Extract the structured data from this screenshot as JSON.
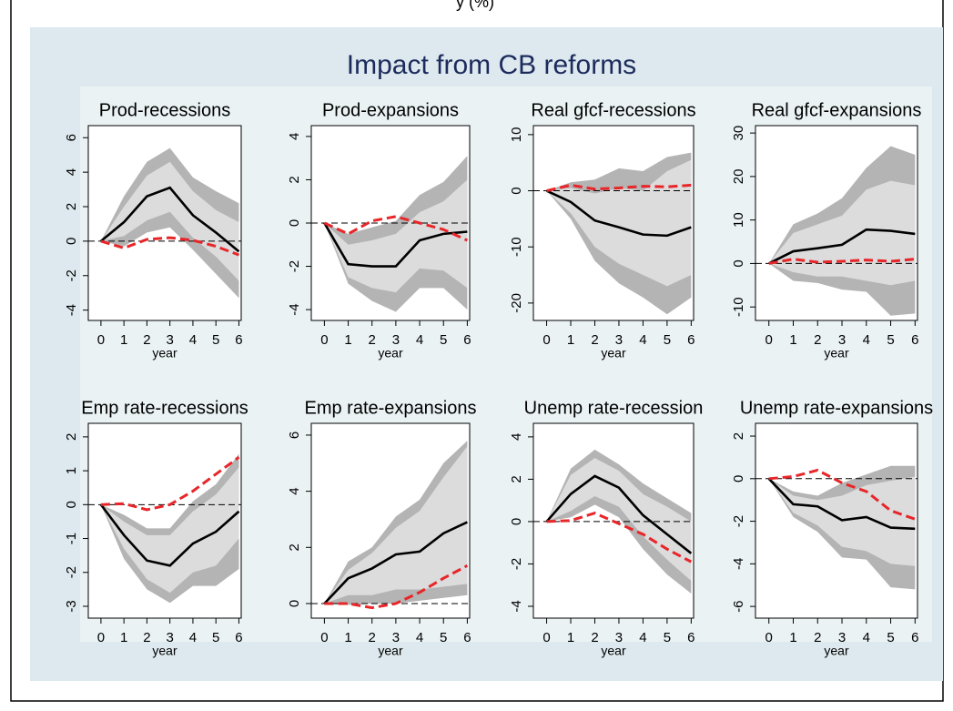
{
  "top_caption": "y (%)",
  "title": "Impact from CB reforms",
  "chart_data": [
    {
      "type": "line",
      "title": "Prod-recessions",
      "xlabel": "year",
      "x": [
        0,
        1,
        2,
        3,
        4,
        5,
        6
      ],
      "xlim": [
        -0.55,
        6.1
      ],
      "xticks": [
        0,
        1,
        2,
        3,
        4,
        5,
        6
      ],
      "ylim": [
        -4.6,
        6.7
      ],
      "yticks": [
        -4,
        -2,
        0,
        2,
        4,
        6
      ],
      "hline": 0,
      "bands": [
        {
          "color": "#b4b4b4",
          "upper": [
            0,
            2.6,
            4.6,
            5.4,
            3.7,
            2.9,
            2.2
          ],
          "lower": [
            0,
            -0.3,
            0.5,
            0.8,
            -0.5,
            -1.9,
            -3.3
          ]
        },
        {
          "color": "#dcdcdc",
          "upper": [
            0,
            2,
            3.8,
            4.6,
            2.9,
            1.8,
            1.1
          ],
          "lower": [
            0,
            0.3,
            1.2,
            1.7,
            0.2,
            -0.9,
            -2.3
          ]
        }
      ],
      "series": [
        {
          "color": "#000000",
          "dashed": false,
          "values": [
            0,
            1.1,
            2.6,
            3.1,
            1.5,
            0.5,
            -0.6
          ]
        },
        {
          "color": "#e8262a",
          "dashed": true,
          "values": [
            0,
            -0.4,
            0.1,
            0.2,
            0.05,
            -0.3,
            -0.8
          ]
        }
      ]
    },
    {
      "type": "line",
      "title": "Prod-expansions",
      "xlabel": "year",
      "x": [
        0,
        1,
        2,
        3,
        4,
        5,
        6
      ],
      "xlim": [
        -0.55,
        6.1
      ],
      "xticks": [
        0,
        1,
        2,
        3,
        4,
        5,
        6
      ],
      "ylim": [
        -4.5,
        4.5
      ],
      "yticks": [
        -4,
        -2,
        0,
        2,
        4
      ],
      "hline": 0,
      "bands": [
        {
          "color": "#b4b4b4",
          "upper": [
            0,
            -0.5,
            -0.2,
            0.1,
            1.3,
            1.9,
            3.1
          ],
          "lower": [
            0,
            -2.8,
            -3.6,
            -4.1,
            -3,
            -3,
            -4
          ]
        },
        {
          "color": "#dcdcdc",
          "upper": [
            0,
            -1,
            -0.8,
            -0.5,
            0.5,
            1,
            2
          ],
          "lower": [
            0,
            -2.5,
            -3,
            -3.2,
            -2.1,
            -2.2,
            -3
          ]
        }
      ],
      "series": [
        {
          "color": "#000000",
          "dashed": false,
          "values": [
            0,
            -1.9,
            -2,
            -2,
            -0.8,
            -0.5,
            -0.4
          ]
        },
        {
          "color": "#e8262a",
          "dashed": true,
          "values": [
            0,
            -0.5,
            0.1,
            0.3,
            0,
            -0.3,
            -0.8
          ]
        }
      ]
    },
    {
      "type": "line",
      "title": "Real gfcf-recessions",
      "xlabel": "year",
      "x": [
        0,
        1,
        2,
        3,
        4,
        5,
        6
      ],
      "xlim": [
        -0.55,
        6.1
      ],
      "xticks": [
        0,
        1,
        2,
        3,
        4,
        5,
        6
      ],
      "ylim": [
        -23.1,
        11.6
      ],
      "yticks": [
        -20,
        -10,
        0,
        10
      ],
      "hline": 0,
      "bands": [
        {
          "color": "#b4b4b4",
          "upper": [
            0,
            1.5,
            2,
            4,
            3.5,
            6,
            6.8
          ],
          "lower": [
            0,
            -5,
            -12.5,
            -16.5,
            -19,
            -22,
            -19
          ]
        },
        {
          "color": "#dcdcdc",
          "upper": [
            0,
            0.5,
            -0.5,
            0.5,
            0,
            3.5,
            5.5
          ],
          "lower": [
            0,
            -4,
            -10,
            -13,
            -15,
            -17,
            -15
          ]
        }
      ],
      "series": [
        {
          "color": "#000000",
          "dashed": false,
          "values": [
            0,
            -2,
            -5.3,
            -6.5,
            -7.8,
            -8,
            -6.5
          ]
        },
        {
          "color": "#e8262a",
          "dashed": true,
          "values": [
            0,
            1,
            0.3,
            0.5,
            0.8,
            0.7,
            1
          ]
        }
      ]
    },
    {
      "type": "line",
      "title": "Real gfcf-expansions",
      "xlabel": "year",
      "x": [
        0,
        1,
        2,
        3,
        4,
        5,
        6
      ],
      "xlim": [
        -0.55,
        6.1
      ],
      "xticks": [
        0,
        1,
        2,
        3,
        4,
        5,
        6
      ],
      "ylim": [
        -13.1,
        31.7
      ],
      "yticks": [
        -10,
        0,
        10,
        20,
        30
      ],
      "hline": 0,
      "bands": [
        {
          "color": "#b4b4b4",
          "upper": [
            0,
            9,
            11.5,
            15,
            22,
            27,
            25
          ],
          "lower": [
            0,
            -4,
            -4.5,
            -6,
            -6.5,
            -12,
            -11.5
          ]
        },
        {
          "color": "#dcdcdc",
          "upper": [
            0,
            7,
            9,
            11,
            17,
            19,
            18
          ],
          "lower": [
            0,
            -2,
            -3,
            -3,
            -4,
            -5,
            -4
          ]
        }
      ],
      "series": [
        {
          "color": "#000000",
          "dashed": false,
          "values": [
            0,
            2.8,
            3.5,
            4.3,
            7.8,
            7.5,
            6.8
          ]
        },
        {
          "color": "#e8262a",
          "dashed": true,
          "values": [
            0,
            1,
            0.3,
            0.5,
            0.8,
            0.5,
            1
          ]
        }
      ]
    },
    {
      "type": "line",
      "title": "Emp rate-recessions",
      "xlabel": "year",
      "x": [
        0,
        1,
        2,
        3,
        4,
        5,
        6
      ],
      "xlim": [
        -0.55,
        6.1
      ],
      "xticks": [
        0,
        1,
        2,
        3,
        4,
        5,
        6
      ],
      "ylim": [
        -3.35,
        2.4
      ],
      "yticks": [
        -3,
        -2,
        -1,
        0,
        1,
        2
      ],
      "hline": 0,
      "bands": [
        {
          "color": "#b4b4b4",
          "upper": [
            0,
            -0.3,
            -0.7,
            -0.7,
            0.1,
            0.6,
            1.5
          ],
          "lower": [
            0,
            -1.6,
            -2.5,
            -2.9,
            -2.4,
            -2.4,
            -1.9
          ]
        },
        {
          "color": "#dcdcdc",
          "upper": [
            0,
            -0.5,
            -0.9,
            -0.9,
            -0.2,
            0.3,
            1.1
          ],
          "lower": [
            0,
            -1.3,
            -2.2,
            -2.6,
            -2,
            -1.8,
            -1
          ]
        }
      ],
      "series": [
        {
          "color": "#000000",
          "dashed": false,
          "values": [
            0,
            -0.9,
            -1.65,
            -1.8,
            -1.15,
            -0.8,
            -0.2
          ]
        },
        {
          "color": "#e8262a",
          "dashed": true,
          "values": [
            0,
            0.03,
            -0.15,
            0,
            0.4,
            0.9,
            1.4
          ]
        }
      ]
    },
    {
      "type": "line",
      "title": "Emp rate-expansions",
      "xlabel": "year",
      "x": [
        0,
        1,
        2,
        3,
        4,
        5,
        6
      ],
      "xlim": [
        -0.55,
        6.1
      ],
      "xticks": [
        0,
        1,
        2,
        3,
        4,
        5,
        6
      ],
      "ylim": [
        -0.52,
        6.42
      ],
      "yticks": [
        0,
        2,
        4,
        6
      ],
      "hline": 0,
      "bands": [
        {
          "color": "#b4b4b4",
          "upper": [
            0,
            1.5,
            2,
            3.1,
            3.7,
            5,
            5.8
          ],
          "lower": [
            0,
            -0.05,
            0,
            0,
            0.1,
            0.2,
            0.3
          ]
        },
        {
          "color": "#dcdcdc",
          "upper": [
            0,
            1.2,
            1.8,
            2.7,
            3.3,
            4.5,
            5.6
          ],
          "lower": [
            0,
            0.3,
            0.3,
            0.5,
            0.5,
            0.6,
            0.7
          ]
        }
      ],
      "series": [
        {
          "color": "#000000",
          "dashed": false,
          "values": [
            0,
            0.9,
            1.25,
            1.75,
            1.85,
            2.5,
            2.9
          ]
        },
        {
          "color": "#e8262a",
          "dashed": true,
          "values": [
            0,
            0,
            -0.15,
            0,
            0.4,
            0.9,
            1.35
          ]
        }
      ]
    },
    {
      "type": "line",
      "title": "Unemp rate-recession",
      "xlabel": "year",
      "x": [
        0,
        1,
        2,
        3,
        4,
        5,
        6
      ],
      "xlim": [
        -0.55,
        6.1
      ],
      "xticks": [
        0,
        1,
        2,
        3,
        4,
        5,
        6
      ],
      "ylim": [
        -4.56,
        4.64
      ],
      "yticks": [
        -4,
        -2,
        0,
        2,
        4
      ],
      "hline": 0,
      "bands": [
        {
          "color": "#b4b4b4",
          "upper": [
            0,
            2.5,
            3.4,
            2.7,
            1.8,
            1.1,
            0.4
          ],
          "lower": [
            0,
            0.2,
            0.8,
            0.2,
            -1.3,
            -2.5,
            -3.4
          ]
        },
        {
          "color": "#dcdcdc",
          "upper": [
            0,
            2.2,
            3,
            2.4,
            1.3,
            0.7,
            0
          ],
          "lower": [
            0,
            0.5,
            1.2,
            0.7,
            -0.7,
            -1.8,
            -2.8
          ]
        }
      ],
      "series": [
        {
          "color": "#000000",
          "dashed": false,
          "values": [
            0,
            1.3,
            2.15,
            1.6,
            0.3,
            -0.6,
            -1.5
          ]
        },
        {
          "color": "#e8262a",
          "dashed": true,
          "values": [
            0,
            0.05,
            0.4,
            -0.1,
            -0.6,
            -1.3,
            -1.9
          ]
        }
      ]
    },
    {
      "type": "line",
      "title": "Unemp rate-expansions",
      "xlabel": "year",
      "x": [
        0,
        1,
        2,
        3,
        4,
        5,
        6
      ],
      "xlim": [
        -0.55,
        6.1
      ],
      "xticks": [
        0,
        1,
        2,
        3,
        4,
        5,
        6
      ],
      "ylim": [
        -6.55,
        2.6
      ],
      "yticks": [
        -6,
        -4,
        -2,
        0,
        2
      ],
      "hline": 0,
      "bands": [
        {
          "color": "#b4b4b4",
          "upper": [
            0,
            -0.6,
            -0.8,
            -0.2,
            0.2,
            0.6,
            0.6
          ],
          "lower": [
            0,
            -1.8,
            -2.5,
            -3.7,
            -3.8,
            -5.1,
            -5.2
          ]
        },
        {
          "color": "#dcdcdc",
          "upper": [
            0,
            -0.8,
            -1,
            -0.8,
            -0.3,
            -0.1,
            0.1
          ],
          "lower": [
            0,
            -1.6,
            -2.2,
            -3.2,
            -3.4,
            -4,
            -4.1
          ]
        }
      ],
      "series": [
        {
          "color": "#000000",
          "dashed": false,
          "values": [
            0,
            -1.2,
            -1.3,
            -1.95,
            -1.8,
            -2.3,
            -2.35
          ]
        },
        {
          "color": "#e8262a",
          "dashed": true,
          "values": [
            0,
            0.1,
            0.4,
            -0.2,
            -0.6,
            -1.5,
            -1.9
          ]
        }
      ]
    }
  ]
}
